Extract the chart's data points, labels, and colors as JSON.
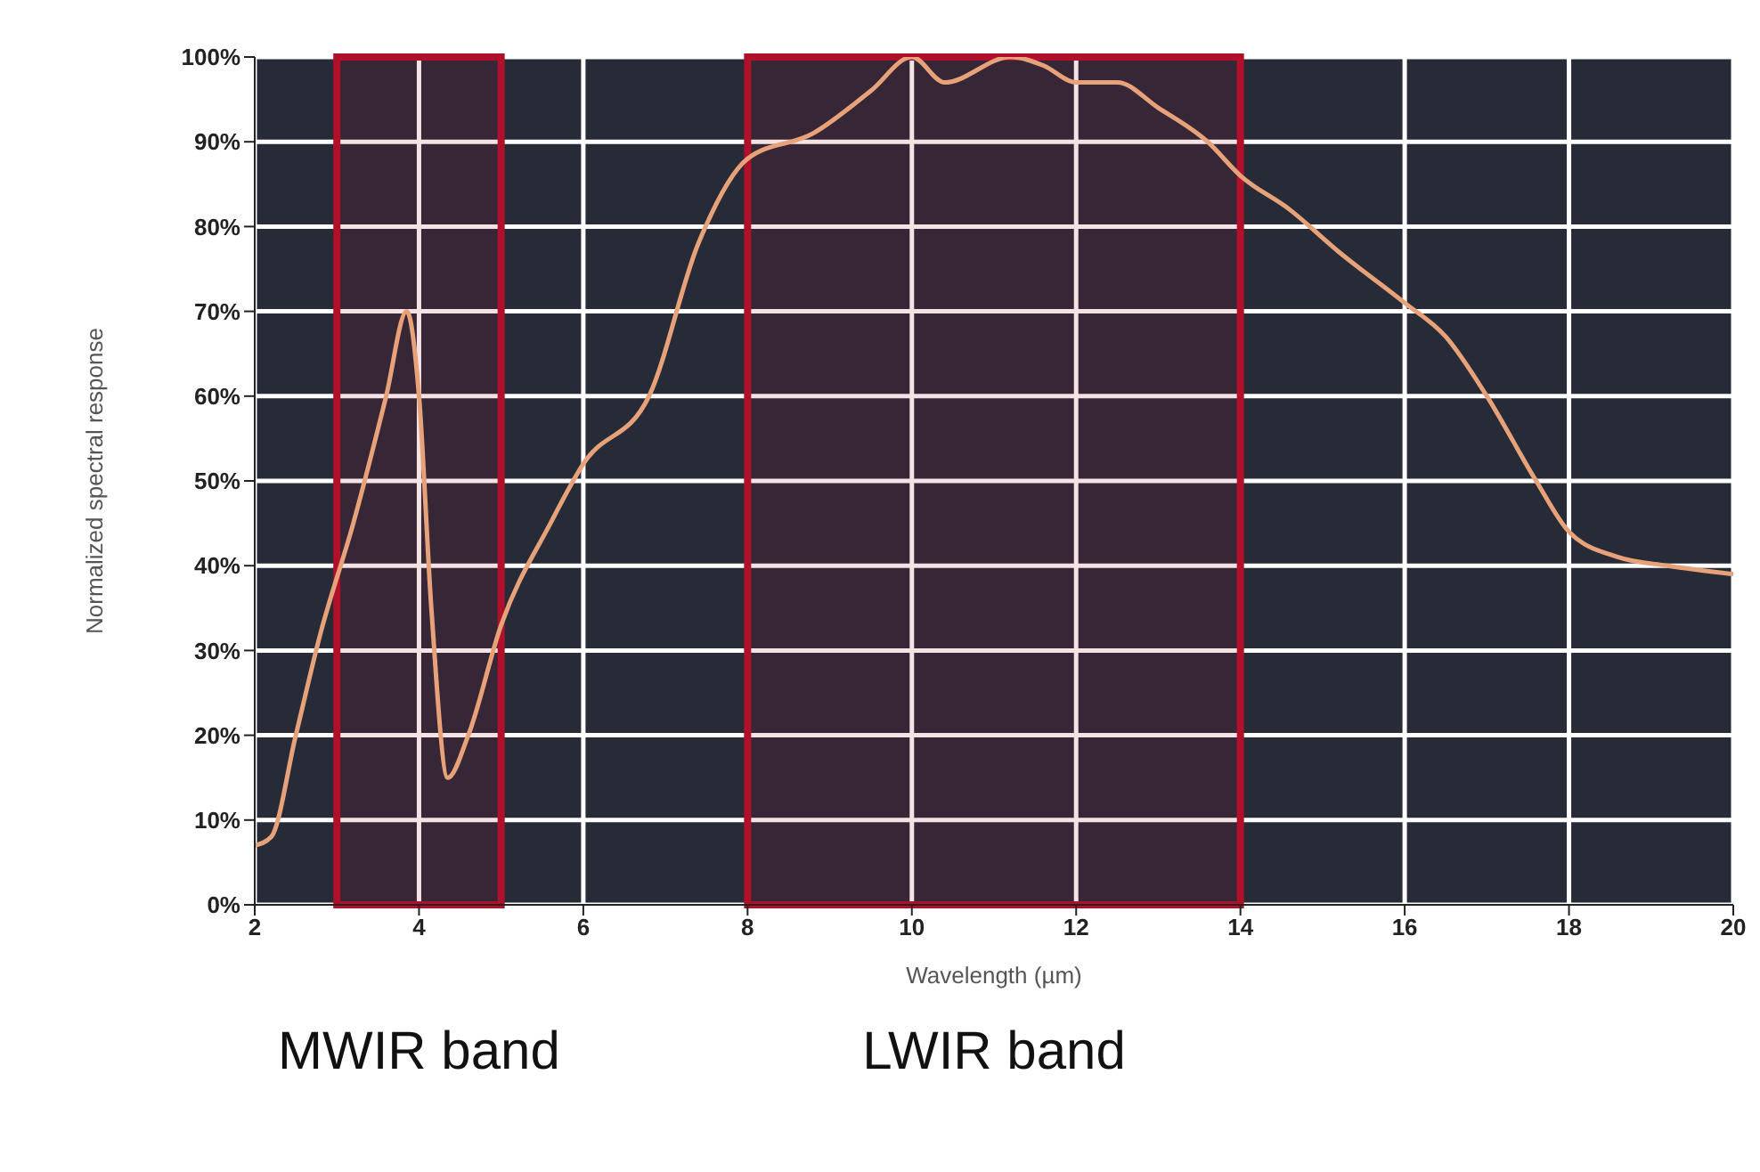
{
  "chart_data": {
    "type": "line",
    "xlabel": "Wavelength (µm)",
    "ylabel": "Normalized spectral response",
    "x": [
      2,
      2.2,
      2.5,
      2.8,
      3.2,
      3.6,
      3.85,
      4.0,
      4.15,
      4.35,
      4.6,
      5.0,
      5.6,
      6,
      6.8,
      7.4,
      8,
      8.8,
      9.5,
      10,
      10.4,
      11.2,
      11.6,
      12,
      12.5,
      13,
      13.6,
      14,
      14.6,
      15.2,
      16,
      16.5,
      17,
      17.6,
      18,
      18.6,
      19.2,
      20
    ],
    "series": [
      {
        "color": "#e8a27a",
        "values": [
          7,
          8,
          20,
          32,
          45,
          60,
          70,
          60,
          35,
          15,
          20,
          33,
          45,
          52,
          60,
          78,
          88,
          91,
          96,
          100,
          97,
          100,
          99,
          97,
          97,
          94,
          90,
          86,
          82,
          77,
          71,
          67,
          60,
          50,
          44,
          41,
          40,
          39
        ]
      }
    ],
    "xlim": [
      2,
      20
    ],
    "xticks": [
      2,
      4,
      6,
      8,
      10,
      12,
      14,
      16,
      18,
      20
    ],
    "ylim": [
      0,
      100
    ],
    "yticks": [
      {
        "value": 0,
        "label": "0%"
      },
      {
        "value": 10,
        "label": "10%"
      },
      {
        "value": 20,
        "label": "20%"
      },
      {
        "value": 30,
        "label": "30%"
      },
      {
        "value": 40,
        "label": "40%"
      },
      {
        "value": 50,
        "label": "50%"
      },
      {
        "value": 60,
        "label": "60%"
      },
      {
        "value": 70,
        "label": "70%"
      },
      {
        "value": 80,
        "label": "80%"
      },
      {
        "value": 90,
        "label": "90%"
      },
      {
        "value": 100,
        "label": "100%"
      }
    ],
    "grid": true,
    "marker": "none",
    "line_style": "solid",
    "bands": [
      {
        "axis": "x",
        "from": 3,
        "to": 5,
        "label": "MWIR band",
        "color": "#b0102a"
      },
      {
        "axis": "x",
        "from": 8,
        "to": 14,
        "label": "LWIR band",
        "color": "#b0102a"
      }
    ]
  }
}
